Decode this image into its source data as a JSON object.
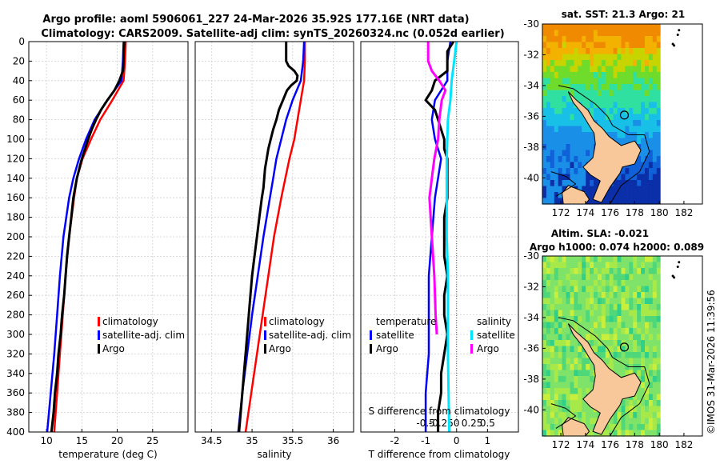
{
  "title": {
    "line1": "Argo profile: aoml 5906061_227 24-Mar-2026 35.92S 177.16E (NRT data)",
    "line2": "Climatology: CARS2009. Satellite-adj clim: synTS_20260324.nc (0.052d earlier)"
  },
  "credit": "©IMOS 31-Mar-2026 11:39:56",
  "colors": {
    "climatology": "#ff0000",
    "satellite": "#0000ff",
    "argo": "#000000",
    "sal_satellite": "#00e5ff",
    "sal_argo": "#ff00ff",
    "land": "#f8c89a",
    "nodata": "#ffffff"
  },
  "chart_data": [
    {
      "type": "line",
      "name": "temperature-profile",
      "xlabel": "temperature (deg C)",
      "ylabel": "",
      "xlim": [
        7.5,
        30
      ],
      "ylim": [
        400,
        0
      ],
      "xticks": [
        10,
        15,
        20,
        25
      ],
      "yticks": [
        0,
        20,
        40,
        60,
        80,
        100,
        120,
        140,
        160,
        180,
        200,
        220,
        240,
        260,
        280,
        300,
        320,
        340,
        360,
        380,
        400
      ],
      "legend": [
        "climatology",
        "satellite-adj. clim",
        "Argo"
      ],
      "series": [
        {
          "name": "climatology",
          "depth": [
            0,
            20,
            40,
            60,
            80,
            100,
            120,
            140,
            160,
            200,
            240,
            280,
            320,
            360,
            400
          ],
          "values": [
            21.2,
            21.1,
            20.9,
            19.3,
            17.6,
            16.3,
            15.1,
            14.3,
            13.9,
            13.2,
            12.7,
            12.3,
            11.9,
            11.5,
            11.1
          ]
        },
        {
          "name": "satellite-adj. clim",
          "depth": [
            0,
            20,
            40,
            60,
            80,
            100,
            120,
            140,
            160,
            200,
            240,
            280,
            320,
            360,
            400
          ],
          "values": [
            20.9,
            20.8,
            20.6,
            18.6,
            16.8,
            15.6,
            14.6,
            13.8,
            13.2,
            12.4,
            11.9,
            11.5,
            11.1,
            10.6,
            10.1
          ]
        },
        {
          "name": "Argo",
          "depth": [
            0,
            10,
            20,
            30,
            40,
            50,
            60,
            70,
            80,
            90,
            100,
            120,
            140,
            160,
            180,
            200,
            220,
            240,
            260,
            280,
            300,
            320,
            340,
            360,
            380,
            400
          ],
          "values": [
            21.0,
            20.9,
            20.9,
            20.8,
            20.3,
            19.6,
            18.6,
            17.7,
            17.0,
            16.4,
            15.9,
            15.0,
            14.3,
            13.8,
            13.5,
            13.2,
            12.9,
            12.7,
            12.5,
            12.2,
            12.0,
            11.7,
            11.5,
            11.2,
            11.0,
            10.7
          ]
        }
      ]
    },
    {
      "type": "line",
      "name": "salinity-profile",
      "xlabel": "salinity",
      "xlim": [
        34.3,
        36.25
      ],
      "ylim": [
        400,
        0
      ],
      "xticks": [
        34.5,
        35,
        35.5,
        36
      ],
      "xtick_labels": [
        "34.5",
        "35",
        "35.5",
        "36"
      ],
      "legend": [
        "climatology",
        "satellite-adj. clim",
        "Argo"
      ],
      "series": [
        {
          "name": "climatology",
          "depth": [
            0,
            20,
            40,
            60,
            80,
            100,
            120,
            140,
            160,
            200,
            240,
            280,
            320,
            360,
            400
          ],
          "values": [
            35.65,
            35.65,
            35.64,
            35.6,
            35.56,
            35.52,
            35.46,
            35.41,
            35.36,
            35.27,
            35.2,
            35.13,
            35.06,
            34.99,
            34.92
          ]
        },
        {
          "name": "satellite-adj. clim",
          "depth": [
            0,
            20,
            40,
            60,
            80,
            100,
            120,
            140,
            160,
            200,
            240,
            280,
            320,
            360,
            400
          ],
          "values": [
            35.64,
            35.63,
            35.6,
            35.5,
            35.42,
            35.36,
            35.3,
            35.26,
            35.22,
            35.14,
            35.07,
            35.0,
            34.94,
            34.88,
            34.83
          ]
        },
        {
          "name": "Argo",
          "depth": [
            0,
            5,
            20,
            25,
            30,
            35,
            40,
            45,
            50,
            60,
            70,
            80,
            90,
            100,
            110,
            120,
            130,
            140,
            150,
            160,
            180,
            200,
            220,
            240,
            260,
            280,
            300,
            320,
            340,
            360,
            380,
            400
          ],
          "values": [
            35.42,
            35.42,
            35.42,
            35.45,
            35.52,
            35.56,
            35.55,
            35.48,
            35.43,
            35.38,
            35.33,
            35.3,
            35.26,
            35.23,
            35.2,
            35.18,
            35.16,
            35.15,
            35.14,
            35.12,
            35.09,
            35.06,
            35.03,
            35.0,
            34.98,
            34.96,
            34.94,
            34.92,
            34.9,
            34.88,
            34.86,
            34.84
          ]
        }
      ]
    },
    {
      "type": "line",
      "name": "difference-profile",
      "xlabel": "T difference from climatology",
      "xlabel_top": "S difference from climatology",
      "xlim": [
        -3.1,
        2.0
      ],
      "ylim": [
        400,
        0
      ],
      "xticks": [
        -2,
        -1,
        0,
        1
      ],
      "s_ticks": [
        "-0.5",
        "-0.25",
        "0",
        "0.25",
        "0.5"
      ],
      "s_tick_positions": [
        -1.0,
        -0.5,
        0,
        0.5,
        1.0
      ],
      "legend_title_t": "temperature",
      "legend_title_s": "salinity",
      "legend_t": [
        "satellite",
        "Argo"
      ],
      "legend_s": [
        "satellite",
        "Argo"
      ],
      "series": [
        {
          "name": "T satellite",
          "depth": [
            0,
            20,
            40,
            60,
            80,
            100,
            120,
            160,
            200,
            240,
            280,
            320,
            360,
            400
          ],
          "values": [
            -0.2,
            -0.3,
            -0.3,
            -0.7,
            -0.8,
            -0.7,
            -0.5,
            -0.7,
            -0.8,
            -0.9,
            -0.9,
            -0.9,
            -1.0,
            -1.0
          ]
        },
        {
          "name": "T Argo",
          "depth": [
            0,
            10,
            20,
            30,
            40,
            50,
            60,
            70,
            80,
            90,
            100,
            110,
            120,
            140,
            160,
            180,
            200,
            220,
            240,
            260,
            280,
            300,
            320,
            340,
            360,
            380,
            400
          ],
          "values": [
            -0.1,
            -0.3,
            -0.3,
            -0.3,
            -0.7,
            -0.8,
            -1.0,
            -0.7,
            -0.6,
            -0.5,
            -0.4,
            -0.4,
            -0.3,
            -0.3,
            -0.3,
            -0.4,
            -0.4,
            -0.4,
            -0.3,
            -0.4,
            -0.4,
            -0.3,
            -0.4,
            -0.5,
            -0.5,
            -0.6,
            -0.6
          ]
        },
        {
          "name": "S satellite",
          "depth": [
            0,
            20,
            40,
            60,
            80,
            120,
            160,
            200,
            240,
            280,
            320,
            360,
            400
          ],
          "values": [
            0.0,
            -0.04,
            -0.08,
            -0.1,
            -0.14,
            -0.16,
            -0.16,
            -0.16,
            -0.14,
            -0.14,
            -0.14,
            -0.13,
            -0.12
          ]
        },
        {
          "name": "S Argo",
          "depth": [
            0,
            20,
            30,
            40,
            50,
            60,
            80,
            100,
            120,
            140,
            160,
            200,
            240,
            280,
            300
          ],
          "values": [
            -0.46,
            -0.46,
            -0.4,
            -0.28,
            -0.18,
            -0.24,
            -0.28,
            -0.3,
            -0.36,
            -0.4,
            -0.44,
            -0.4,
            -0.36,
            -0.34,
            -0.32
          ]
        }
      ]
    },
    {
      "type": "heatmap",
      "name": "sst-map",
      "title": "sat. SST: 21.3 Argo: 21",
      "xticks": [
        172,
        174,
        176,
        178,
        180,
        182
      ],
      "yticks": [
        -30,
        -32,
        -34,
        -36,
        -38,
        -40
      ],
      "xlim": [
        170.5,
        183.5
      ],
      "ylim": [
        -41.7,
        -30
      ],
      "float_position": [
        177.16,
        -35.92
      ]
    },
    {
      "type": "heatmap",
      "name": "sla-map",
      "title": "Altim. SLA: -0.021",
      "subtitle": "Argo h1000: 0.074 h2000: 0.089",
      "xticks": [
        172,
        174,
        176,
        178,
        180,
        182
      ],
      "yticks": [
        -30,
        -32,
        -34,
        -36,
        -38,
        -40
      ],
      "xlim": [
        170.5,
        183.5
      ],
      "ylim": [
        -41.7,
        -30
      ],
      "float_position": [
        177.16,
        -35.92
      ]
    }
  ]
}
